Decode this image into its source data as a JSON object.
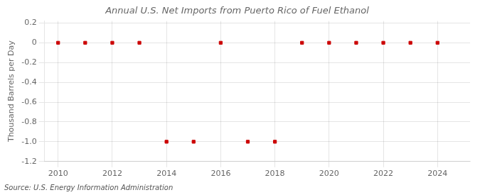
{
  "chart_data": {
    "type": "scatter",
    "title": "Annual U.S. Net Imports from Puerto Rico of Fuel Ethanol",
    "ylabel": "Thousand Barrels per Day",
    "annotations": [
      "Source: U.S. Energy Information Administration"
    ],
    "x": [
      2010,
      2011,
      2012,
      2013,
      2014,
      2015,
      2016,
      2017,
      2018,
      2019,
      2020,
      2021,
      2022,
      2023,
      2024
    ],
    "values": [
      0,
      0,
      0,
      0,
      -1,
      -1,
      0,
      -1,
      -1,
      0,
      0,
      0,
      0,
      0,
      0
    ],
    "color": "#cc0000",
    "marker": "square",
    "xlim": [
      2009.5,
      2025.2
    ],
    "xticks": [
      2010,
      2012,
      2014,
      2016,
      2018,
      2020,
      2022,
      2024
    ],
    "ylim": [
      -1.2,
      0.22
    ],
    "yticks": [
      0.2,
      0,
      -0.2,
      -0.4,
      -0.6,
      -0.8,
      {
        "value": -1.0,
        "label": "-1.0"
      },
      -1.2
    ],
    "grid": true
  }
}
